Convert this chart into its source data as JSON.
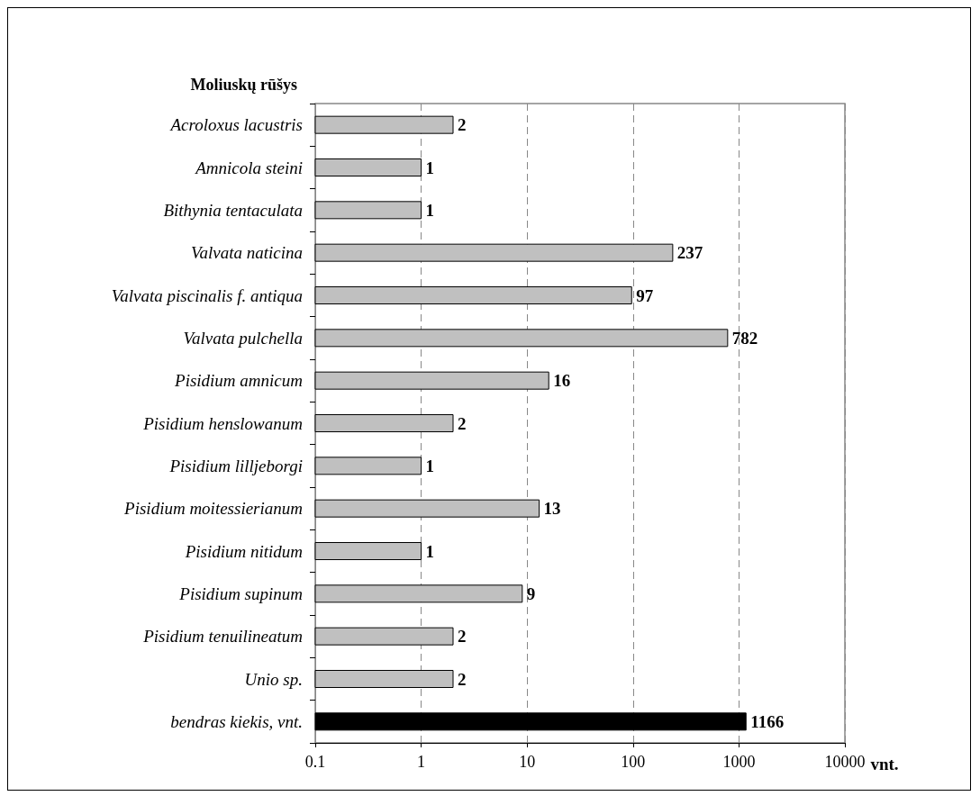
{
  "chart_data": {
    "type": "bar",
    "orientation": "horizontal",
    "ylabel": "Moliuskų rūšys",
    "xlabel": "vnt.",
    "categories": [
      "Acroloxus lacustris",
      "Amnicola steini",
      "Bithynia tentaculata",
      "Valvata naticina",
      "Valvata piscinalis f. antiqua",
      "Valvata pulchella",
      "Pisidium amnicum",
      "Pisidium henslowanum",
      "Pisidium lilljeborgi",
      "Pisidium moitessierianum",
      "Pisidium nitidum",
      "Pisidium supinum",
      "Pisidium tenuilineatum",
      "Unio sp.",
      "bendras kiekis, vnt."
    ],
    "values": [
      2,
      1,
      1,
      237,
      97,
      782,
      16,
      2,
      1,
      13,
      1,
      9,
      2,
      2,
      1166
    ],
    "colors": [
      "#c0c0c0",
      "#c0c0c0",
      "#c0c0c0",
      "#c0c0c0",
      "#c0c0c0",
      "#c0c0c0",
      "#c0c0c0",
      "#c0c0c0",
      "#c0c0c0",
      "#c0c0c0",
      "#c0c0c0",
      "#c0c0c0",
      "#c0c0c0",
      "#c0c0c0",
      "#000000"
    ],
    "log": "x",
    "xlim": [
      0.1,
      10000
    ],
    "xticks": [
      0.1,
      1,
      10,
      100,
      1000,
      10000
    ],
    "grid": "x",
    "data_labels": true
  }
}
